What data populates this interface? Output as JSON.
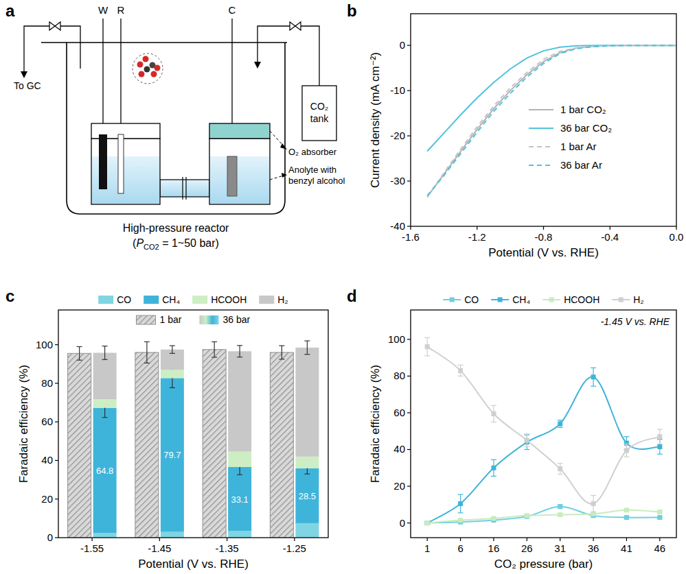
{
  "diagram": {
    "panel": "a",
    "electrodes": [
      "W",
      "R",
      "C"
    ],
    "outlet": "To GC",
    "tank": [
      "CO₂",
      "tank"
    ],
    "absorber": "O₂ absorber",
    "anolyte": [
      "Anolyte with",
      "benzyl alcohol"
    ],
    "reactor": "High-pressure reactor",
    "pressure": [
      {
        "text": "(",
        "style": "normal"
      },
      {
        "text": "P",
        "style": "italic"
      },
      {
        "text": "CO2",
        "style": "sub"
      },
      {
        "text": " = 1~50 bar)",
        "style": "normal"
      }
    ]
  },
  "chart_data": [
    {
      "type": "line",
      "title": "b",
      "x_label": "Potential (V vs. RHE)",
      "y_label": "Current density (mA cm⁻²)",
      "x": [
        -1.5,
        -1.4,
        -1.3,
        -1.2,
        -1.1,
        -1.0,
        -0.9,
        -0.8,
        -0.7,
        -0.6,
        -0.5,
        -0.4,
        -0.3,
        -0.2,
        -0.1,
        0
      ],
      "xlim": [
        -1.6,
        0
      ],
      "xticks": [
        -1.6,
        -1.2,
        -0.8,
        -0.4,
        {
          "value": 0,
          "label": "0.0"
        }
      ],
      "ylim": [
        -40,
        7
      ],
      "yticks": [
        0,
        -10,
        -20,
        -30,
        -40
      ],
      "legend": "right",
      "series": [
        {
          "name": "1 bar CO₂",
          "color": "#b3b3b3",
          "line_style": "solid",
          "values": [
            -33.5,
            -28.5,
            -23.5,
            -18.6,
            -14.0,
            -10.0,
            -6.5,
            -3.6,
            -1.6,
            -0.6,
            -0.2,
            -0.1,
            0,
            0,
            0,
            0
          ]
        },
        {
          "name": "36 bar CO₂",
          "color": "#4fc3dc",
          "line_style": "solid",
          "values": [
            -23.4,
            -19.4,
            -15.4,
            -11.6,
            -8.2,
            -5.2,
            -2.8,
            -1.2,
            -0.4,
            -0.1,
            0,
            0,
            0,
            0,
            0,
            0
          ]
        },
        {
          "name": "1 bar Ar",
          "color": "#c4c4c4",
          "line_style": "dashed",
          "values": [
            -33.6,
            -28.2,
            -23.0,
            -18.0,
            -13.4,
            -9.4,
            -6.0,
            -3.1,
            -1.3,
            -0.5,
            -0.2,
            -0.1,
            0,
            0,
            0,
            0
          ]
        },
        {
          "name": "36 bar Ar",
          "color": "#4fc3dc",
          "line_style": "dashed",
          "values": [
            -33.2,
            -28.8,
            -24.0,
            -19.2,
            -14.6,
            -10.6,
            -7.0,
            -4.0,
            -1.8,
            -0.7,
            -0.3,
            -0.1,
            0,
            0,
            0,
            0
          ]
        }
      ]
    },
    {
      "type": "bar",
      "title": "c",
      "x_label": "Potential (V vs. RHE)",
      "y_label": "Faradaic efficiency (%)",
      "categories": [
        "-1.55",
        "-1.45",
        "-1.35",
        "-1.25"
      ],
      "stacked": true,
      "legend": "top",
      "ylim": [
        0,
        118
      ],
      "yticks": [
        0,
        20,
        40,
        60,
        80,
        100
      ],
      "reference": {
        "name": "1 bar",
        "color": "#8f8f8f",
        "values": [
          95.5,
          96,
          97.5,
          96
        ],
        "errors": [
          3.5,
          5.5,
          4,
          3.5
        ]
      },
      "stack_name": "36 bar",
      "stack_errors": [
        3.5,
        2,
        3,
        3.5
      ],
      "series": [
        {
          "name": "CO",
          "color": "#7fd5e2",
          "values": [
            2.5,
            3,
            3.5,
            7.5
          ]
        },
        {
          "name": "CH₄",
          "color": "#3fb4da",
          "values": [
            64.8,
            79.7,
            33.1,
            28.5
          ],
          "errors": [
            5,
            5,
            4,
            3
          ],
          "data_labels": true
        },
        {
          "name": "HCOOH",
          "color": "#cdeec4",
          "values": [
            4.5,
            4.3,
            8,
            6
          ]
        },
        {
          "name": "H₂",
          "color": "#c8c8c8",
          "values": [
            24,
            10.5,
            52,
            56.5
          ]
        }
      ]
    },
    {
      "type": "line",
      "title": "d",
      "x_label": "CO₂ pressure (bar)",
      "y_label": "Faradaic efficiency (%)",
      "annotation": "-1.45 V vs. RHE",
      "categories": [
        "1",
        "6",
        "16",
        "26",
        "31",
        "36",
        "41",
        "46"
      ],
      "legend": "top",
      "ylim": [
        -8,
        116
      ],
      "yticks": [
        0,
        20,
        40,
        60,
        80,
        100
      ],
      "series": [
        {
          "name": "CO",
          "color": "#6fcfe0",
          "marker": "square",
          "values": [
            0,
            0.5,
            1.5,
            3.5,
            9,
            4,
            3,
            3
          ],
          "errors": [
            0.5,
            0.5,
            0.5,
            0.5,
            1,
            0.5,
            0.5,
            0.5
          ]
        },
        {
          "name": "CH₄",
          "color": "#3fb4da",
          "marker": "square",
          "values": [
            0,
            10.5,
            30,
            44,
            54,
            79.5,
            43.5,
            41.5
          ],
          "errors": [
            0.5,
            5,
            4.5,
            4,
            2,
            5,
            3.5,
            4
          ]
        },
        {
          "name": "HCOOH",
          "color": "#c9ecbd",
          "marker": "square",
          "values": [
            0,
            1.5,
            2.5,
            4,
            4.5,
            5,
            7,
            6
          ],
          "errors": [
            0.5,
            0.5,
            0.5,
            0.5,
            0.5,
            0.5,
            0.5,
            0.5
          ]
        },
        {
          "name": "H₂",
          "color": "#cfcfcf",
          "marker": "square",
          "values": [
            96,
            83,
            59.5,
            45,
            29.5,
            10.5,
            39.5,
            47
          ],
          "errors": [
            5,
            3,
            4.5,
            3.5,
            3,
            4.5,
            3.5,
            4
          ]
        }
      ]
    }
  ]
}
